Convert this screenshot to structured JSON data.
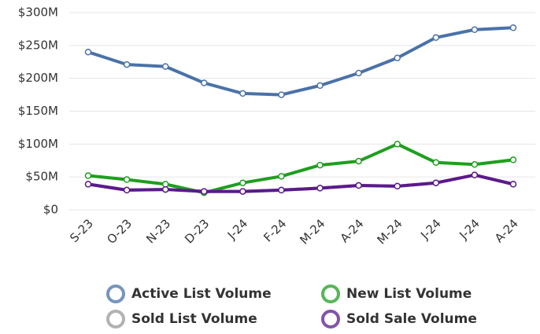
{
  "chart_data": {
    "type": "line",
    "categories": [
      "S-23",
      "O-23",
      "N-23",
      "D-23",
      "J-24",
      "F-24",
      "M-24",
      "A-24",
      "M-24",
      "J-24",
      "J-24",
      "A-24"
    ],
    "series": [
      {
        "name": "Active List Volume",
        "color": "#4a72a8",
        "values": [
          240,
          221,
          218,
          193,
          177,
          175,
          189,
          208,
          231,
          262,
          274,
          277
        ]
      },
      {
        "name": "New List Volume",
        "color": "#1f9e1f",
        "values": [
          52,
          46,
          39,
          26,
          41,
          51,
          68,
          74,
          100,
          72,
          69,
          76
        ]
      },
      {
        "name": "Sold List Volume",
        "color": "#999999",
        "values": [
          39,
          30,
          31,
          28,
          28,
          30,
          33,
          37,
          36,
          41,
          53,
          39
        ]
      },
      {
        "name": "Sold Sale Volume",
        "color": "#5b1a8c",
        "values": [
          39,
          30,
          31,
          28,
          28,
          30,
          33,
          37,
          36,
          41,
          53,
          39
        ]
      }
    ],
    "ylim": [
      0,
      300
    ],
    "yticks": [
      {
        "value": 0,
        "label": "$0"
      },
      {
        "value": 50,
        "label": "$50M"
      },
      {
        "value": 100,
        "label": "$100M"
      },
      {
        "value": 150,
        "label": "$150M"
      },
      {
        "value": 200,
        "label": "$200M"
      },
      {
        "value": 250,
        "label": "$250M"
      },
      {
        "value": 300,
        "label": "$300M"
      }
    ],
    "grid": true
  }
}
